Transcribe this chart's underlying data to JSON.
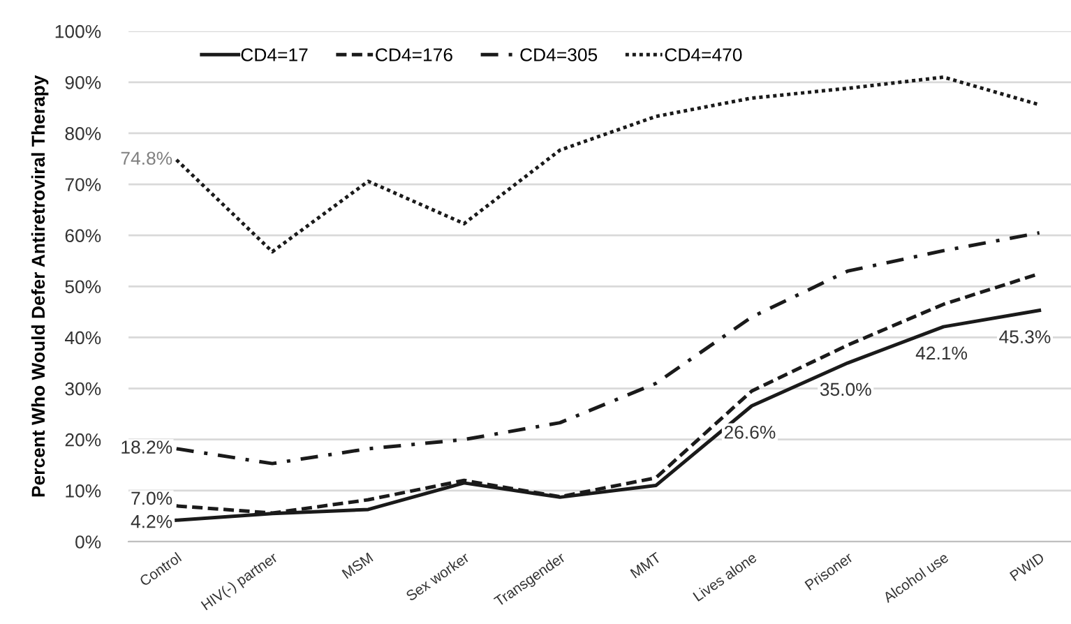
{
  "chart_data": {
    "type": "line",
    "ylabel": "Percent Who Would Defer Antiretroviral Therapy",
    "categories": [
      "Control",
      "HIV(-) partner",
      "MSM",
      "Sex worker",
      "Transgender",
      "MMT",
      "Lives alone",
      "Prisoner",
      "Alcohol use",
      "PWID"
    ],
    "series": [
      {
        "name": "CD4=17",
        "color": "#1a1a1a",
        "line_style": "solid",
        "values": [
          4.2,
          5.5,
          6.3,
          11.5,
          8.7,
          11.0,
          26.6,
          35.0,
          42.1,
          45.3
        ],
        "value_labels": [
          "4.2%",
          null,
          null,
          null,
          null,
          null,
          "26.6%",
          "35.0%",
          "42.1%",
          "45.3%"
        ]
      },
      {
        "name": "CD4=176",
        "color": "#1a1a1a",
        "line_style": "dashed",
        "values": [
          7.0,
          5.6,
          8.2,
          12.0,
          8.8,
          12.5,
          29.5,
          38.5,
          46.5,
          52.5
        ],
        "value_labels": [
          "7.0%",
          null,
          null,
          null,
          null,
          null,
          null,
          null,
          null,
          null
        ]
      },
      {
        "name": "CD4=305",
        "color": "#1a1a1a",
        "line_style": "dashdot",
        "values": [
          18.2,
          15.3,
          18.2,
          20.0,
          23.3,
          31.0,
          44.0,
          53.0,
          57.0,
          60.5
        ],
        "value_labels": [
          "18.2%",
          null,
          null,
          null,
          null,
          null,
          null,
          null,
          null,
          null
        ]
      },
      {
        "name": "CD4=470",
        "color": "#1a1a1a",
        "line_style": "dotted",
        "values": [
          74.8,
          56.8,
          70.6,
          62.3,
          76.7,
          83.3,
          86.9,
          88.8,
          91.0,
          85.6
        ],
        "value_labels": [
          "74.8%",
          null,
          null,
          null,
          null,
          null,
          null,
          null,
          null,
          null
        ]
      }
    ],
    "ylim": [
      0,
      100
    ],
    "yticks": [
      {
        "value": 0,
        "label": "0%"
      },
      {
        "value": 10,
        "label": "10%"
      },
      {
        "value": 20,
        "label": "20%"
      },
      {
        "value": 30,
        "label": "30%"
      },
      {
        "value": 40,
        "label": "40%"
      },
      {
        "value": 50,
        "label": "50%"
      },
      {
        "value": 60,
        "label": "60%"
      },
      {
        "value": 70,
        "label": "70%"
      },
      {
        "value": 80,
        "label": "80%"
      },
      {
        "value": 90,
        "label": "90%"
      },
      {
        "value": 100,
        "label": "100%"
      }
    ],
    "grid": "y",
    "legend": "top left",
    "marker": "none"
  }
}
